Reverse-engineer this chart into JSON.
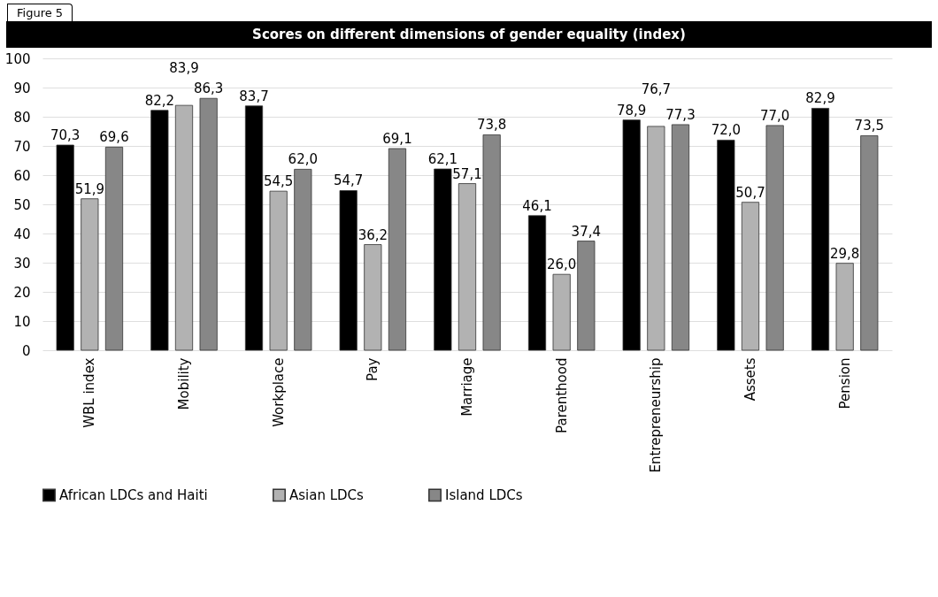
{
  "chart_data": {
    "type": "bar",
    "title": "Scores on different dimensions of gender equality (index)",
    "annotations": [
      "Figure 5"
    ],
    "categories": [
      "WBL index",
      "Mobility",
      "Workplace",
      "Pay",
      "Marriage",
      "Parenthood",
      "Entrepreneurship",
      "Assets",
      "Pension"
    ],
    "series": [
      {
        "name": "African LDCs and Haiti",
        "color": "#000000",
        "values": [
          70.3,
          82.2,
          83.7,
          54.7,
          62.1,
          46.1,
          78.9,
          72.0,
          82.9
        ],
        "value_labels": [
          "70,3",
          "82,2",
          "83,7",
          "54,7",
          "62,1",
          "46,1",
          "78,9",
          "72,0",
          "82,9"
        ]
      },
      {
        "name": "Asian LDCs",
        "color": "#b2b2b2",
        "values": [
          51.9,
          83.9,
          54.5,
          36.2,
          57.1,
          26.0,
          76.7,
          50.7,
          29.8
        ],
        "value_labels": [
          "51,9",
          "83,9",
          "54,5",
          "36,2",
          "57,1",
          "26,0",
          "76,7",
          "50,7",
          "29,8"
        ]
      },
      {
        "name": "Island LDCs",
        "color": "#878787",
        "values": [
          69.6,
          86.3,
          62.0,
          69.1,
          73.8,
          37.4,
          77.3,
          77.0,
          73.5
        ],
        "value_labels": [
          "69,6",
          "86,3",
          "62,0",
          "69,1",
          "73,8",
          "37,4",
          "77,3",
          "77,0",
          "73,5"
        ]
      }
    ],
    "ylim": [
      0,
      100
    ],
    "yticks": [
      0,
      10,
      20,
      30,
      40,
      50,
      60,
      70,
      80,
      90,
      100
    ],
    "grid": "y",
    "legend": "bottom"
  }
}
